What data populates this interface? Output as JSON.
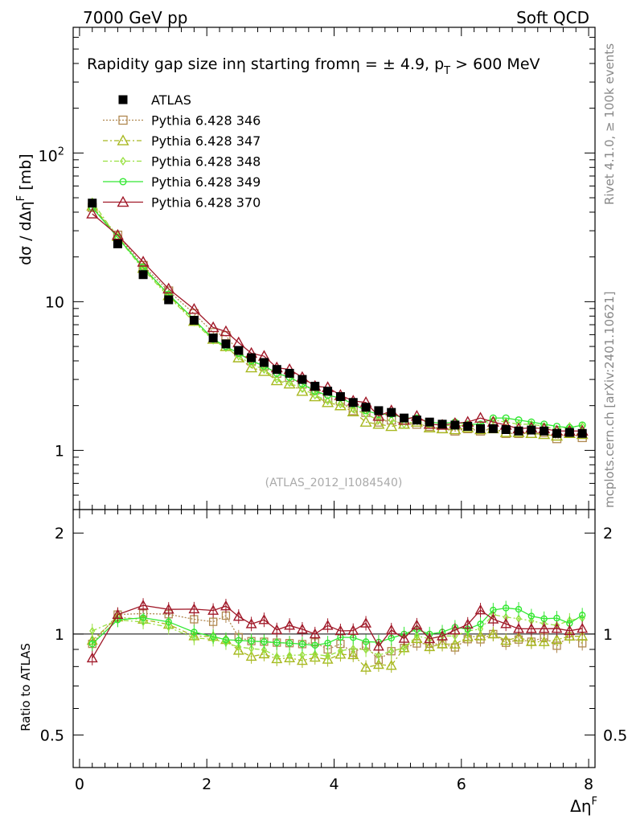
{
  "header": {
    "left": "7000 GeV pp",
    "right": "Soft QCD"
  },
  "side_labels": {
    "rivet": "Rivet 4.1.0, ≥ 100k events",
    "mcplots": "mcplots.cern.ch [arXiv:2401.10621]"
  },
  "chart_data": {
    "type": "line",
    "title": "Rapidity gap size in η starting from η = ± 4.9, p_T > 600 MeV",
    "title_parts": {
      "main": "Rapidity gap size inη starting fromη = ± 4.9, p",
      "sub": "T",
      "tail": " > 600 MeV"
    },
    "analysis_tag": "(ATLAS_2012_I1084540)",
    "xlabel": "Δη",
    "xlabel_sup": "F",
    "ylabel": "dσ / dΔη",
    "ylabel_sup": "F",
    "ylabel_unit": " [mb]",
    "ratio_ylabel": "Ratio to ATLAS",
    "xlim": [
      -0.1,
      8.1
    ],
    "ylim": [
      0.4,
      700
    ],
    "yscale": "log",
    "ratio_ylim": [
      0.4,
      2.35
    ],
    "ratio_yscale": "log",
    "x_ticks": [
      "0",
      "2",
      "4",
      "6",
      "8"
    ],
    "y_ticks": [
      "1",
      "10",
      "10^2"
    ],
    "ratio_y_ticks": [
      "0.5",
      "1",
      "2"
    ],
    "x": [
      0.2,
      0.6,
      1.0,
      1.4,
      1.8,
      2.1,
      2.3,
      2.5,
      2.7,
      2.9,
      3.1,
      3.3,
      3.5,
      3.7,
      3.9,
      4.1,
      4.3,
      4.5,
      4.7,
      4.9,
      5.1,
      5.3,
      5.5,
      5.7,
      5.9,
      6.1,
      6.3,
      6.5,
      6.7,
      6.9,
      7.1,
      7.3,
      7.5,
      7.7,
      7.9
    ],
    "series": [
      {
        "name": "ATLAS",
        "color": "#000000",
        "marker": "filled-square",
        "dash": "none",
        "values": [
          46,
          24.5,
          15.2,
          10.3,
          7.5,
          5.7,
          5.2,
          4.7,
          4.2,
          3.9,
          3.5,
          3.3,
          3.0,
          2.7,
          2.5,
          2.3,
          2.1,
          1.95,
          1.85,
          1.8,
          1.65,
          1.6,
          1.55,
          1.5,
          1.48,
          1.45,
          1.4,
          1.4,
          1.38,
          1.35,
          1.37,
          1.35,
          1.3,
          1.32,
          1.3
        ]
      },
      {
        "name": "Pythia 6.428 346",
        "color": "#b08850",
        "marker": "open-square",
        "dash": "2,2",
        "values": [
          43,
          28,
          17.5,
          11.8,
          8.3,
          6.2,
          5.9,
          4.6,
          4.0,
          3.7,
          3.3,
          3.1,
          2.8,
          2.55,
          2.25,
          2.15,
          1.85,
          1.8,
          1.55,
          1.6,
          1.5,
          1.5,
          1.45,
          1.4,
          1.35,
          1.4,
          1.35,
          1.4,
          1.3,
          1.3,
          1.3,
          1.32,
          1.2,
          1.3,
          1.22
        ]
      },
      {
        "name": "Pythia 6.428 347",
        "color": "#a8b820",
        "marker": "open-triangle",
        "dash": "6,3,2,3",
        "values": [
          44,
          27.5,
          16.8,
          11.0,
          7.4,
          5.6,
          5.0,
          4.2,
          3.6,
          3.4,
          2.95,
          2.8,
          2.5,
          2.3,
          2.1,
          2.0,
          1.82,
          1.55,
          1.5,
          1.45,
          1.5,
          1.55,
          1.42,
          1.4,
          1.38,
          1.42,
          1.38,
          1.4,
          1.32,
          1.32,
          1.3,
          1.28,
          1.25,
          1.3,
          1.28
        ]
      },
      {
        "name": "Pythia 6.428 348",
        "color": "#98e040",
        "marker": "open-diamond",
        "dash": "6,3,2,3",
        "values": [
          47,
          27,
          16.5,
          10.8,
          7.3,
          5.5,
          4.9,
          4.3,
          3.8,
          3.5,
          3.0,
          2.85,
          2.6,
          2.35,
          2.15,
          2.05,
          1.9,
          1.75,
          1.6,
          1.6,
          1.5,
          1.58,
          1.5,
          1.48,
          1.46,
          1.48,
          1.45,
          1.6,
          1.55,
          1.5,
          1.5,
          1.45,
          1.38,
          1.45,
          1.45
        ]
      },
      {
        "name": "Pythia 6.428 349",
        "color": "#33e833",
        "marker": "open-circle",
        "dash": "none",
        "values": [
          43,
          27,
          17.0,
          11.2,
          7.6,
          5.6,
          5.0,
          4.5,
          4.0,
          3.7,
          3.3,
          3.1,
          2.8,
          2.5,
          2.35,
          2.25,
          2.05,
          1.85,
          1.75,
          1.75,
          1.65,
          1.65,
          1.55,
          1.52,
          1.55,
          1.5,
          1.5,
          1.65,
          1.65,
          1.6,
          1.55,
          1.5,
          1.45,
          1.42,
          1.48
        ]
      },
      {
        "name": "Pythia 6.428 370",
        "color": "#a01828",
        "marker": "open-triangle",
        "dash": "none",
        "values": [
          39,
          28,
          18.5,
          12.2,
          8.9,
          6.7,
          6.3,
          5.3,
          4.5,
          4.3,
          3.6,
          3.5,
          3.1,
          2.7,
          2.65,
          2.35,
          2.15,
          2.1,
          1.7,
          1.85,
          1.6,
          1.7,
          1.5,
          1.48,
          1.52,
          1.55,
          1.65,
          1.55,
          1.48,
          1.4,
          1.42,
          1.4,
          1.35,
          1.35,
          1.35
        ]
      }
    ]
  }
}
